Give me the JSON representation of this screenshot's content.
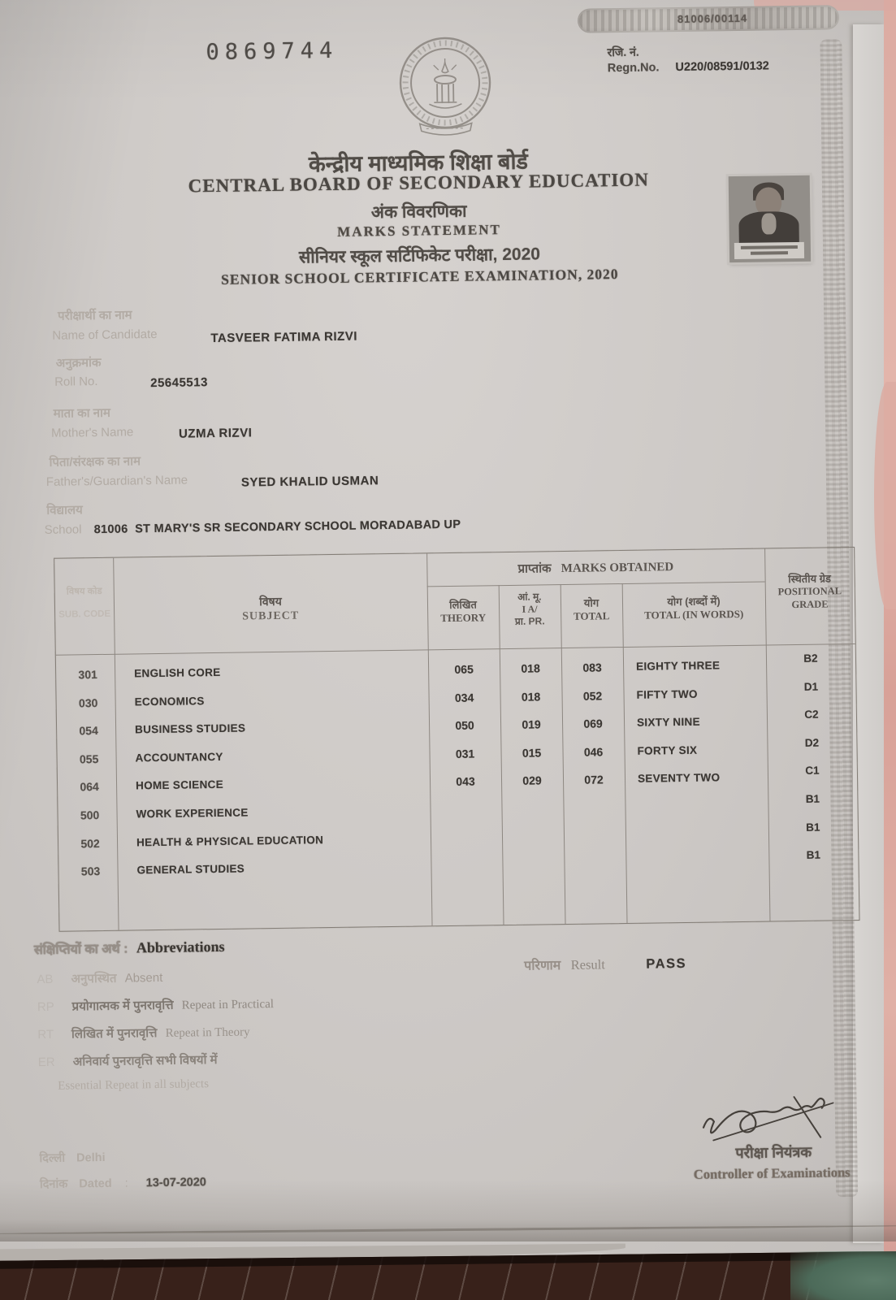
{
  "colors": {
    "paper": "#cdc9c6",
    "ink": "#3b3733",
    "faded_label": "#b2aba4",
    "backdrop_pink": "#dcaba2",
    "backdrop_dark": "#38211a"
  },
  "meta": {
    "serial_number": "0869744",
    "watermark": "81006/00114",
    "regn": {
      "label_hi": "रजि. नं.",
      "label_en": "Regn.No.",
      "value": "U220/08591/0132"
    }
  },
  "header": {
    "board_hi": "केन्द्रीय माध्यमिक शिक्षा बोर्ड",
    "board_en": "CENTRAL BOARD OF SECONDARY EDUCATION",
    "doc_hi": "अंक विवरणिका",
    "doc_en": "MARKS STATEMENT",
    "exam_hi": "सीनियर स्कूल सर्टिफिकेट परीक्षा, 2020",
    "exam_en": "SENIOR SCHOOL CERTIFICATE EXAMINATION, 2020"
  },
  "candidate": {
    "name_label_hi": "परीक्षार्थी का नाम",
    "name_label_en": "Name of Candidate",
    "name": "TASVEER FATIMA RIZVI",
    "roll_label_hi": "अनुक्रमांक",
    "roll_label_en": "Roll No.",
    "roll": "25645513",
    "mother_label_hi": "माता का नाम",
    "mother_label_en": "Mother's Name",
    "mother": "UZMA RIZVI",
    "father_label_hi": "पिता/संरक्षक का नाम",
    "father_label_en": "Father's/Guardian's Name",
    "father": "SYED KHALID USMAN",
    "school_label_hi": "विद्यालय",
    "school_label_en": "School",
    "school": "81006  ST MARY'S SR SECONDARY SCHOOL MORADABAD UP"
  },
  "table": {
    "col_code_hi": "विषय कोड",
    "col_code_en": "SUB. CODE",
    "col_subject_hi": "विषय",
    "col_subject_en": "SUBJECT",
    "marks_obtained_hi": "प्राप्तांक",
    "marks_obtained_en": "MARKS OBTAINED",
    "col_theory_hi": "लिखित",
    "col_theory_en": "THEORY",
    "col_ia_line1": "आं. मू.",
    "col_ia_line2": "I A/",
    "col_ia_line3": "प्रा. PR.",
    "col_total_hi": "योग",
    "col_total_en": "TOTAL",
    "col_words_hi": "योग (शब्दों में)",
    "col_words_en": "TOTAL (IN WORDS)",
    "col_grade_hi": "स्थितीय ग्रेड",
    "col_grade_en1": "POSITIONAL",
    "col_grade_en2": "GRADE",
    "rows": [
      {
        "code": "301",
        "subject": "ENGLISH CORE",
        "theory": "065",
        "ia": "018",
        "total": "083",
        "words": "EIGHTY THREE",
        "grade": "B2"
      },
      {
        "code": "030",
        "subject": "ECONOMICS",
        "theory": "034",
        "ia": "018",
        "total": "052",
        "words": "FIFTY TWO",
        "grade": "D1"
      },
      {
        "code": "054",
        "subject": "BUSINESS STUDIES",
        "theory": "050",
        "ia": "019",
        "total": "069",
        "words": "SIXTY NINE",
        "grade": "C2"
      },
      {
        "code": "055",
        "subject": "ACCOUNTANCY",
        "theory": "031",
        "ia": "015",
        "total": "046",
        "words": "FORTY SIX",
        "grade": "D2"
      },
      {
        "code": "064",
        "subject": "HOME SCIENCE",
        "theory": "043",
        "ia": "029",
        "total": "072",
        "words": "SEVENTY TWO",
        "grade": "C1"
      },
      {
        "code": "500",
        "subject": "WORK EXPERIENCE",
        "theory": "",
        "ia": "",
        "total": "",
        "words": "",
        "grade": "B1"
      },
      {
        "code": "502",
        "subject": "HEALTH & PHYSICAL EDUCATION",
        "theory": "",
        "ia": "",
        "total": "",
        "words": "",
        "grade": "B1"
      },
      {
        "code": "503",
        "subject": "GENERAL STUDIES",
        "theory": "",
        "ia": "",
        "total": "",
        "words": "",
        "grade": "B1"
      }
    ]
  },
  "abbreviations": {
    "title_hi": "संक्षिप्तियों का अर्थ :",
    "title_en": "Abbreviations",
    "items": [
      {
        "code": "AB",
        "hi": "अनुपस्थित",
        "en": "Absent"
      },
      {
        "code": "RP",
        "hi": "प्रयोगात्मक में पुनरावृत्ति",
        "en": "Repeat in Practical"
      },
      {
        "code": "RT",
        "hi": "लिखित में पुनरावृत्ति",
        "en": "Repeat in Theory"
      },
      {
        "code": "ER",
        "hi": "अनिवार्य पुनरावृत्ति सभी विषयों में",
        "en": ""
      },
      {
        "code": "",
        "hi": "",
        "en": "Essential Repeat in all subjects"
      }
    ]
  },
  "result": {
    "label_hi": "परिणाम",
    "label_en": "Result",
    "value": "PASS"
  },
  "footer": {
    "place_hi": "दिल्ली",
    "place_en": "Delhi",
    "dated_label_hi": "दिनांक",
    "dated_label_en": "Dated",
    "dated_sep": ":",
    "dated_value": "13-07-2020",
    "signatory_hi": "परीक्षा नियंत्रक",
    "signatory_en": "Controller of Examinations"
  }
}
